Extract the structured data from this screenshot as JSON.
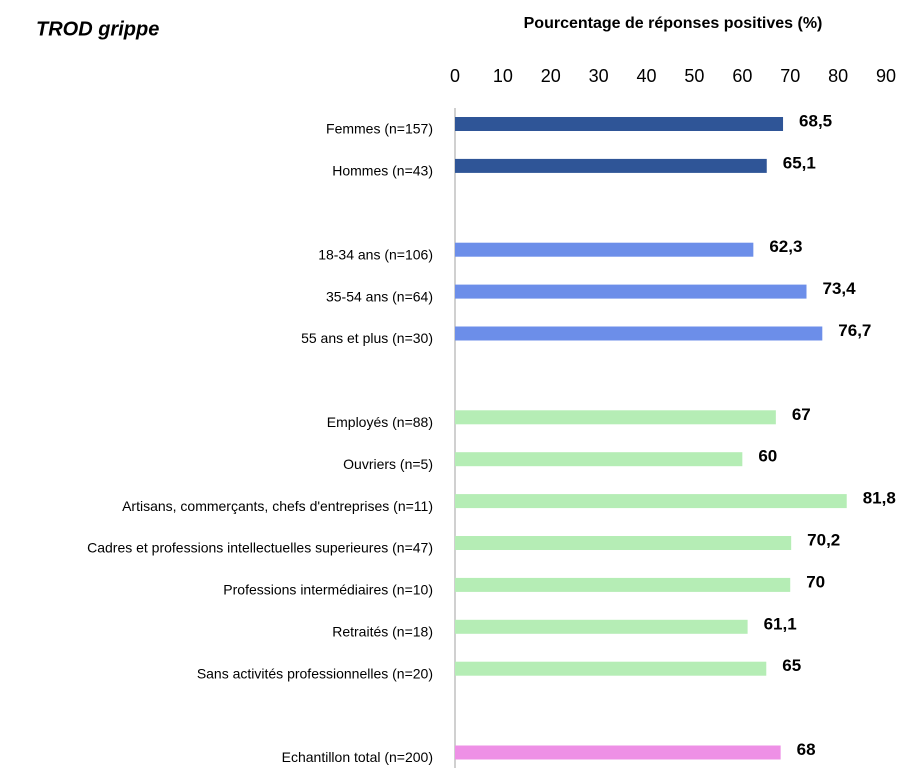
{
  "chart_data": {
    "type": "bar",
    "orientation": "horizontal",
    "title": "TROD grippe",
    "x_label": "Pourcentage de réponses positives (%)",
    "categories": [
      "Femmes (n=157)",
      "Hommes (n=43)",
      null,
      "18-34 ans (n=106)",
      "35-54 ans  (n=64)",
      "55 ans et plus  (n=30)",
      null,
      "Employés (n=88)",
      "Ouvriers (n=5)",
      "Artisans, commerçants, chefs d'entreprises (n=11)",
      "Cadres et professions intellectuelles superieures  (n=47)",
      "Professions intermédiaires (n=10)",
      "Retraités (n=18)",
      "Sans activités professionnelles (n=20)",
      null,
      "Echantillon total (n=200)"
    ],
    "values": [
      68.5,
      65.1,
      null,
      62.3,
      73.4,
      76.7,
      null,
      67,
      60,
      81.8,
      70.2,
      70,
      61.1,
      65,
      null,
      68
    ],
    "value_labels": [
      "68,5",
      "65,1",
      null,
      "62,3",
      "73,4",
      "76,7",
      null,
      "67",
      "60",
      "81,8",
      "70,2",
      "70",
      "61,1",
      "65",
      null,
      "68"
    ],
    "colors": [
      "#2f5597",
      "#2f5597",
      null,
      "#6c8ee9",
      "#6c8ee9",
      "#6c8ee9",
      null,
      "#b5edb5",
      "#b5edb5",
      "#b5edb5",
      "#b5edb5",
      "#b5edb5",
      "#b5edb5",
      "#b5edb5",
      null,
      "#ee90e6"
    ],
    "xlim": [
      0,
      90
    ],
    "xticks": [
      0,
      10,
      20,
      30,
      40,
      50,
      60,
      70,
      80,
      90
    ]
  }
}
